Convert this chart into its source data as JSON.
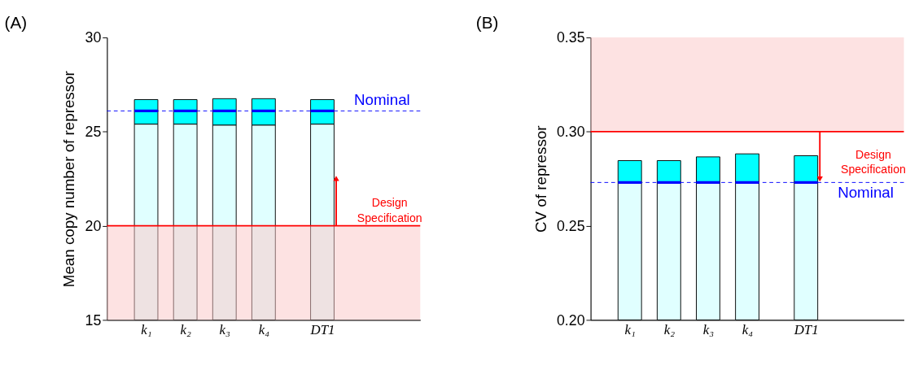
{
  "chart_data": [
    {
      "type": "bar",
      "title": "(A)",
      "ylabel": "Mean copy number of repressor",
      "categories": [
        null,
        "k₁",
        null,
        "k₂",
        null,
        "k₃",
        null,
        "k₄",
        null,
        null,
        "DT1",
        null,
        null,
        null,
        null
      ],
      "ylim": [
        15,
        30
      ],
      "yticks": [
        15,
        20,
        25,
        30
      ],
      "series": [
        {
          "color": "#e0ffff",
          "base": [
            null,
            15,
            null,
            15,
            null,
            15,
            null,
            15,
            null,
            null,
            15,
            null,
            null,
            null,
            null
          ],
          "values": [
            null,
            10.4,
            null,
            10.4,
            null,
            10.35,
            null,
            10.35,
            null,
            null,
            10.4,
            null,
            null,
            null,
            null
          ]
        },
        {
          "color": "#00ffff",
          "base": [
            null,
            25.4,
            null,
            25.4,
            null,
            25.35,
            null,
            25.35,
            null,
            null,
            25.4,
            null,
            null,
            null,
            null
          ],
          "values": [
            null,
            1.3,
            null,
            1.3,
            null,
            1.4,
            null,
            1.4,
            null,
            null,
            1.3,
            null,
            null,
            null,
            null
          ]
        },
        {
          "color": "#0000ff",
          "base": [
            null,
            26.1,
            null,
            26.1,
            null,
            26.1,
            null,
            26.1,
            null,
            null,
            26.1,
            null,
            null,
            null,
            null
          ],
          "values": [
            null,
            0,
            null,
            0,
            null,
            0,
            null,
            0,
            null,
            null,
            0,
            null,
            null,
            null,
            null
          ]
        }
      ],
      "ref_lines": [
        {
          "axis": "y",
          "value": 26.1,
          "color": "#0000ff",
          "line_style": "dashed"
        },
        {
          "axis": "y",
          "value": 20,
          "color": "#ff0000",
          "line_style": "solid"
        }
      ],
      "bands": [
        {
          "axis": "y",
          "from": 15,
          "to": 20,
          "color": "#fbc6c6"
        }
      ],
      "annotations": [
        "Nominal",
        "Design\nSpecification"
      ],
      "grid": false,
      "legend": false
    },
    {
      "type": "bar",
      "title": "(B)",
      "ylabel": "CV of repressor",
      "categories": [
        null,
        "k₁",
        null,
        "k₂",
        null,
        "k₃",
        null,
        "k₄",
        null,
        null,
        "DT1",
        null,
        null,
        null,
        null
      ],
      "ylim": [
        0.2,
        0.35
      ],
      "yticks": [
        {
          "value": 0.2,
          "label": "0.20"
        },
        0.25,
        {
          "value": 0.3,
          "label": "0.30"
        },
        0.35
      ],
      "series": [
        {
          "color": "#e0ffff",
          "base": [
            null,
            0.2,
            null,
            0.2,
            null,
            0.2,
            null,
            0.2,
            null,
            null,
            0.2,
            null,
            null,
            null,
            null
          ],
          "values": [
            null,
            0.073,
            null,
            0.073,
            null,
            0.073,
            null,
            0.073,
            null,
            null,
            0.073,
            null,
            null,
            null,
            null
          ]
        },
        {
          "color": "#00ffff",
          "base": [
            null,
            0.273,
            null,
            0.273,
            null,
            0.273,
            null,
            0.273,
            null,
            null,
            0.273,
            null,
            null,
            null,
            null
          ],
          "values": [
            null,
            0.0116,
            null,
            0.0116,
            null,
            0.0136,
            null,
            0.0152,
            null,
            null,
            0.0142,
            null,
            null,
            null,
            null
          ]
        },
        {
          "color": "#0000ff",
          "base": [
            null,
            0.273,
            null,
            0.273,
            null,
            0.273,
            null,
            0.273,
            null,
            null,
            0.273,
            null,
            null,
            null,
            null
          ],
          "values": [
            null,
            0,
            null,
            0,
            null,
            0,
            null,
            0,
            null,
            null,
            0,
            null,
            null,
            null,
            null
          ]
        }
      ],
      "ref_lines": [
        {
          "axis": "y",
          "value": 0.273,
          "color": "#0000ff",
          "line_style": "dashed"
        },
        {
          "axis": "y",
          "value": 0.3,
          "color": "#ff0000",
          "line_style": "solid"
        }
      ],
      "bands": [
        {
          "axis": "y",
          "from": 0.3,
          "to": 0.35,
          "color": "#fbc6c6"
        }
      ],
      "annotations": [
        "Nominal",
        "Design\nSpecification"
      ],
      "grid": false,
      "legend": false
    }
  ]
}
